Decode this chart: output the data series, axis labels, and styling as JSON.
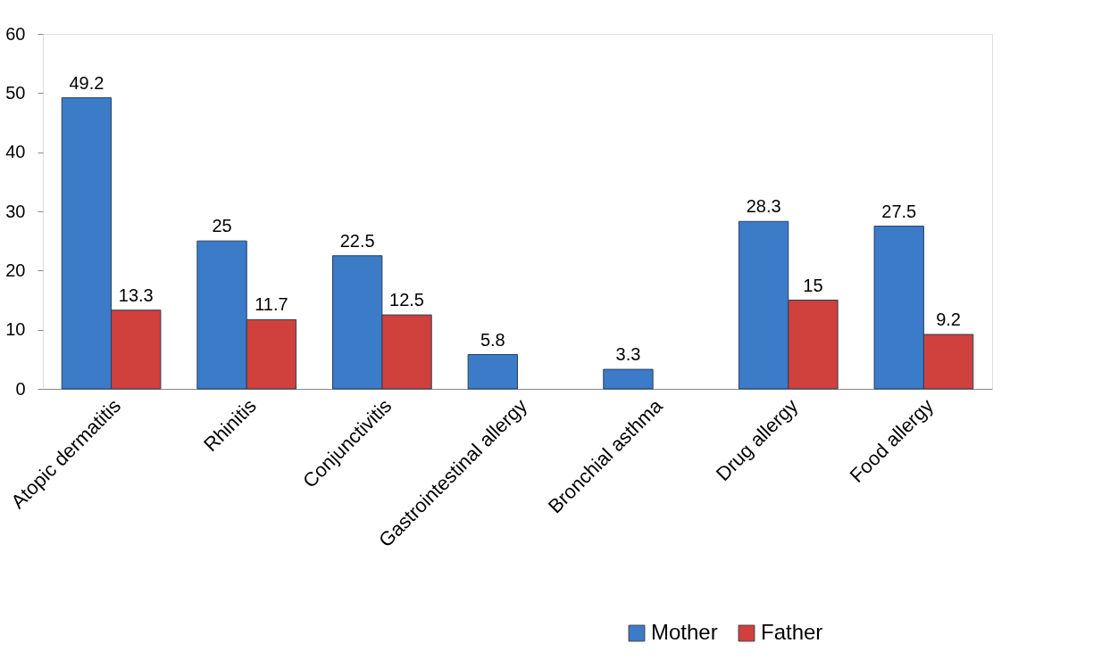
{
  "chart_data": {
    "type": "bar",
    "categories": [
      "Atopic dermatitis",
      "Rhinitis",
      "Conjunctivitis",
      "Gastrointestinal allergy",
      "Bronchial asthma",
      "Drug allergy",
      "Food allergy"
    ],
    "series": [
      {
        "name": "Mother",
        "color": "#3b7bc8",
        "values": [
          49.2,
          25,
          22.5,
          5.8,
          3.3,
          28.3,
          27.5
        ]
      },
      {
        "name": "Father",
        "color": "#d0403c",
        "values": [
          13.3,
          11.7,
          12.5,
          null,
          null,
          15,
          9.2
        ]
      }
    ],
    "ylim": [
      0,
      60
    ],
    "yticks": [
      0,
      10,
      20,
      30,
      40,
      50,
      60
    ],
    "data_labels": true,
    "grid": false,
    "legend": "bottom right"
  }
}
